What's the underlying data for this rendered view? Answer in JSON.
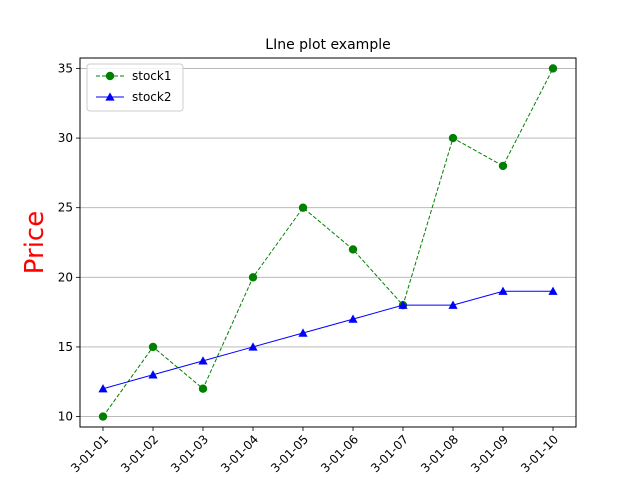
{
  "chart_data": {
    "type": "line",
    "title": "LIne plot example",
    "xlabel": "",
    "ylabel": "Price",
    "ylabel_color": "#ff0000",
    "x": [
      "2023-01-01",
      "2023-01-02",
      "2023-01-03",
      "2023-01-04",
      "2023-01-05",
      "2023-01-06",
      "2023-01-07",
      "2023-01-08",
      "2023-01-09",
      "2023-01-10"
    ],
    "x_tick_labels": [
      "3-01-01",
      "3-01-02",
      "3-01-03",
      "3-01-04",
      "3-01-05",
      "3-01-06",
      "3-01-07",
      "3-01-08",
      "3-01-09",
      "3-01-10"
    ],
    "ylim": [
      9.25,
      35.75
    ],
    "yticks": [
      10,
      15,
      20,
      25,
      30,
      35
    ],
    "grid": "y-axis",
    "legend_position": "top-left",
    "series": [
      {
        "name": "stock1",
        "values": [
          10,
          15,
          12,
          20,
          25,
          22,
          18,
          30,
          28,
          35
        ],
        "color": "#008000",
        "linestyle": "dashed",
        "marker": "circle"
      },
      {
        "name": "stock2",
        "values": [
          12,
          13,
          14,
          15,
          16,
          17,
          18,
          18,
          19,
          19
        ],
        "color": "#0000ff",
        "linestyle": "solid",
        "marker": "triangle"
      }
    ]
  }
}
